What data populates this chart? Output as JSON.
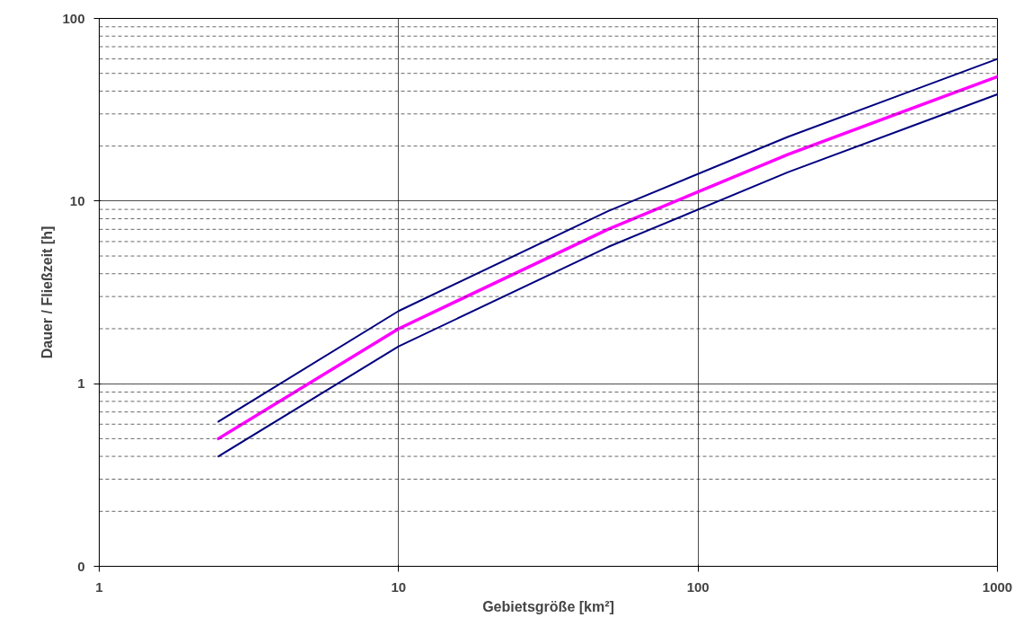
{
  "chart_data": {
    "type": "line",
    "xlabel": "Gebietsgröße [km²]",
    "ylabel": "Dauer / Fließzeit [h]",
    "log": "xy",
    "grid": true,
    "marker": "none",
    "line_style": "solid",
    "x": [
      2.5,
      10,
      50,
      200,
      1000
    ],
    "series": [
      {
        "color": "#000080",
        "values": [
          0.62,
          2.5,
          8.8,
          22.5,
          60
        ]
      },
      {
        "color": "#ff00ff",
        "values": [
          0.5,
          2,
          7,
          18,
          48
        ]
      },
      {
        "color": "#000080",
        "values": [
          0.4,
          1.6,
          5.6,
          14.4,
          38.4
        ]
      }
    ],
    "xlim": [
      1,
      1000
    ],
    "xticks": [
      1,
      10,
      100,
      1000
    ],
    "ylim": [
      0.1,
      100
    ],
    "yticks": [
      {
        "value": 0.1,
        "label": "0"
      },
      1,
      10,
      100
    ]
  }
}
